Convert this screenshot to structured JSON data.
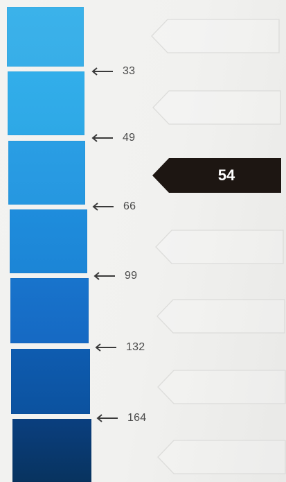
{
  "swatches": [
    {
      "color_top": "#3bb2ea",
      "color_bottom": "#38aee8",
      "name": "swatch-1"
    },
    {
      "color_top": "#32aeea",
      "color_bottom": "#2ea8e6",
      "name": "swatch-2"
    },
    {
      "color_top": "#2a9ee4",
      "color_bottom": "#2697e0",
      "name": "swatch-3"
    },
    {
      "color_top": "#1f8ddc",
      "color_bottom": "#1c85d6",
      "name": "swatch-4"
    },
    {
      "color_top": "#1874cc",
      "color_bottom": "#1669c3",
      "name": "swatch-5"
    },
    {
      "color_top": "#0e5cb0",
      "color_bottom": "#0c529f",
      "name": "swatch-6"
    },
    {
      "color_top": "#0a3f7f",
      "color_bottom": "#08335f",
      "name": "swatch-7"
    }
  ],
  "markers": [
    {
      "value": "33"
    },
    {
      "value": "49"
    },
    {
      "value": "66"
    },
    {
      "value": "99"
    },
    {
      "value": "132"
    },
    {
      "value": "164"
    }
  ],
  "slots": [
    {
      "value": "",
      "filled": false
    },
    {
      "value": "",
      "filled": false
    },
    {
      "value": "54",
      "filled": true
    },
    {
      "value": "",
      "filled": false
    },
    {
      "value": "",
      "filled": false
    },
    {
      "value": "",
      "filled": false
    },
    {
      "value": "",
      "filled": false
    }
  ],
  "colors": {
    "filled_slot": "#1d1612",
    "empty_slot_border": "#d8d8d6",
    "arrow": "#3a3a3a"
  }
}
